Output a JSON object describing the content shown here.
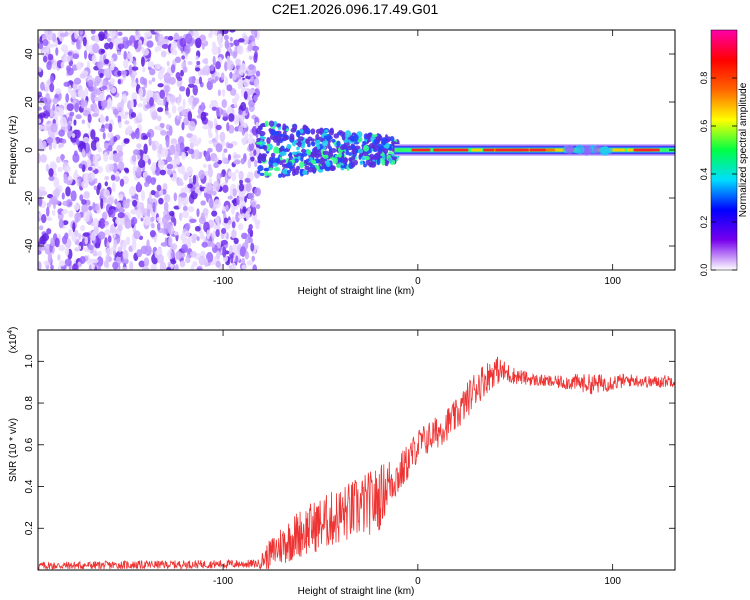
{
  "title": "C2E1.2026.096.17.49.G01",
  "chart_data": [
    {
      "type": "heatmap",
      "name": "spectrogram",
      "xlabel": "Height of straight line (km)",
      "ylabel": "Frequency (Hz)",
      "xlim": [
        -195,
        132
      ],
      "ylim": [
        -50,
        50
      ],
      "xticks": [
        -100,
        0,
        100
      ],
      "xtick_labels": [
        "-100",
        "0",
        "100"
      ],
      "yticks": [
        -40,
        -20,
        0,
        20,
        40
      ],
      "ytick_labels": [
        "-40",
        "-20",
        "0",
        "20",
        "40"
      ],
      "noise_region_x": [
        -195,
        -82
      ],
      "signal_band_hz": 0,
      "colorbar": {
        "label": "Normalized spectral amplitude",
        "range": [
          0,
          1
        ],
        "ticks": [
          0.0,
          0.2,
          0.4,
          0.6,
          0.8
        ],
        "tick_labels": [
          "0.0",
          "0.2",
          "0.4",
          "0.6",
          "0.8"
        ],
        "colors": [
          "#ffffff",
          "#7700ee",
          "#0000ff",
          "#00ddff",
          "#00ff44",
          "#ffff00",
          "#ff6600",
          "#ff0000",
          "#ff00aa"
        ]
      },
      "grid": false
    },
    {
      "type": "line",
      "name": "snr",
      "xlabel": "Height of straight line (km)",
      "ylabel": "SNR (10 * v/v)",
      "scale_label": "(x10",
      "scale_exp": "4",
      "scale_close": ")",
      "xlim": [
        -195,
        132
      ],
      "ylim": [
        0,
        1.15
      ],
      "xticks": [
        -100,
        0,
        100
      ],
      "xtick_labels": [
        "-100",
        "0",
        "100"
      ],
      "yticks": [
        0.2,
        0.4,
        0.6,
        0.8,
        1.0
      ],
      "ytick_labels": [
        "0.2",
        "0.4",
        "0.6",
        "0.8",
        "1.0"
      ],
      "color": "#ee3333",
      "x": [
        -195,
        -82,
        -78,
        -70,
        -60,
        -50,
        -40,
        -30,
        -20,
        -15,
        -10,
        -5,
        0,
        10,
        20,
        30,
        40,
        50,
        60,
        70,
        80,
        90,
        100,
        110,
        120,
        132
      ],
      "y": [
        0.02,
        0.03,
        0.06,
        0.12,
        0.18,
        0.22,
        0.26,
        0.3,
        0.34,
        0.42,
        0.45,
        0.52,
        0.6,
        0.66,
        0.74,
        0.88,
        0.96,
        0.93,
        0.91,
        0.9,
        0.9,
        0.89,
        0.9,
        0.91,
        0.9,
        0.91
      ],
      "noise": [
        0.02,
        0.02,
        0.06,
        0.1,
        0.12,
        0.13,
        0.14,
        0.15,
        0.16,
        0.12,
        0.1,
        0.09,
        0.08,
        0.08,
        0.08,
        0.09,
        0.07,
        0.04,
        0.03,
        0.03,
        0.04,
        0.05,
        0.04,
        0.03,
        0.03,
        0.03
      ],
      "grid": false
    }
  ]
}
